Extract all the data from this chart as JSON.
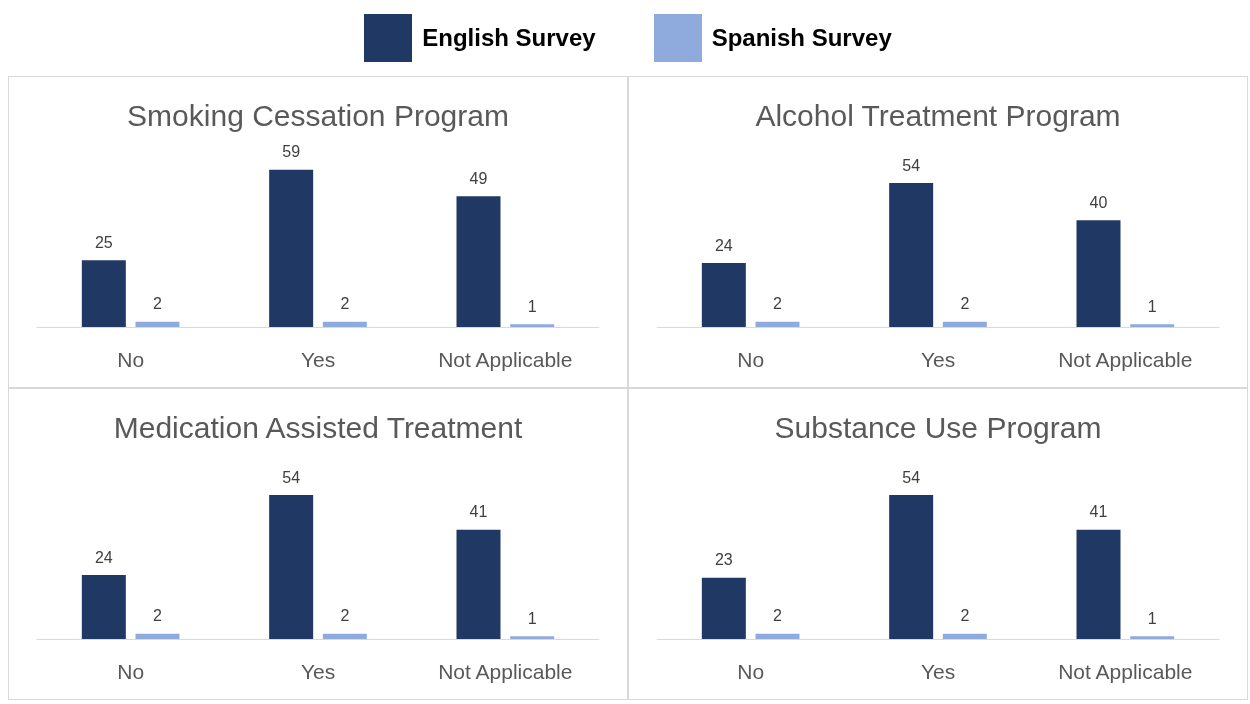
{
  "chart_data": [
    {
      "type": "bar",
      "title": "Smoking Cessation Program",
      "categories": [
        "No",
        "Yes",
        "Not Applicable"
      ],
      "legend": "top",
      "data_labels": true,
      "grid": false,
      "series": [
        {
          "name": "English Survey",
          "color": "#1f3864",
          "values": [
            25,
            59,
            49
          ]
        },
        {
          "name": "Spanish Survey",
          "color": "#8faadc",
          "values": [
            2,
            2,
            1
          ]
        }
      ]
    },
    {
      "type": "bar",
      "title": "Alcohol Treatment Program",
      "categories": [
        "No",
        "Yes",
        "Not Applicable"
      ],
      "data_labels": true,
      "grid": false,
      "series": [
        {
          "color": "#1f3864",
          "values": [
            24,
            54,
            40
          ]
        },
        {
          "color": "#8faadc",
          "values": [
            2,
            2,
            1
          ]
        }
      ]
    },
    {
      "type": "bar",
      "title": "Medication Assisted Treatment",
      "categories": [
        "No",
        "Yes",
        "Not Applicable"
      ],
      "data_labels": true,
      "grid": false,
      "series": [
        {
          "color": "#1f3864",
          "values": [
            24,
            54,
            41
          ]
        },
        {
          "color": "#8faadc",
          "values": [
            2,
            2,
            1
          ]
        }
      ]
    },
    {
      "type": "bar",
      "title": "Substance Use Program",
      "categories": [
        "No",
        "Yes",
        "Not Applicable"
      ],
      "data_labels": true,
      "grid": false,
      "series": [
        {
          "color": "#1f3864",
          "values": [
            23,
            54,
            41
          ]
        },
        {
          "color": "#8faadc",
          "values": [
            2,
            2,
            1
          ]
        }
      ]
    }
  ]
}
